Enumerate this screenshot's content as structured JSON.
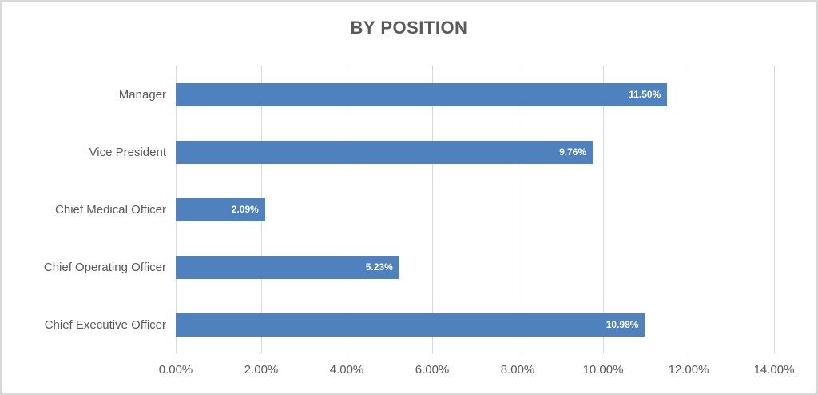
{
  "chart_data": {
    "type": "bar",
    "orientation": "horizontal",
    "title": "BY POSITION",
    "categories": [
      "Manager",
      "Vice President",
      "Chief Medical Officer",
      "Chief Operating Officer",
      "Chief Executive Officer"
    ],
    "values": [
      11.5,
      9.76,
      2.09,
      5.23,
      10.98
    ],
    "value_labels": [
      "11.50%",
      "9.76%",
      "2.09%",
      "5.23%",
      "10.98%"
    ],
    "xlabel": "",
    "ylabel": "",
    "xlim": [
      0,
      14
    ],
    "x_tick_step": 2,
    "x_tick_labels": [
      "0.00%",
      "2.00%",
      "4.00%",
      "6.00%",
      "8.00%",
      "10.00%",
      "12.00%",
      "14.00%"
    ],
    "grid": "vertical-on",
    "legend": "none",
    "colors": {
      "bar": "#4e81bd",
      "value_label": "#ffffff",
      "text": "#595959",
      "gridline": "#d9d9d9",
      "frame_border": "#d9d9d9",
      "background": "#ffffff"
    }
  }
}
